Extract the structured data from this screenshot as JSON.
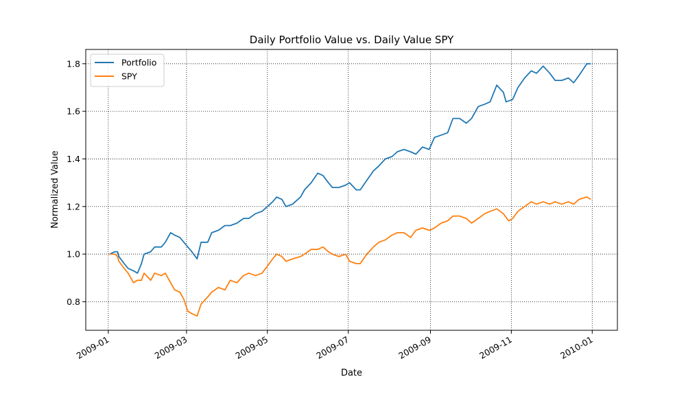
{
  "chart_data": {
    "type": "line",
    "title": "Daily Portfolio Value vs. Daily Value SPY",
    "xlabel": "Date",
    "ylabel": "Normalized Value",
    "xlim": [
      "2008-12-15",
      "2010-01-20"
    ],
    "ylim": [
      0.68,
      1.86
    ],
    "grid": true,
    "grid_style": "dotted",
    "legend_position": "top-left",
    "x_ticks": [
      "2009-01-01",
      "2009-03-01",
      "2009-05-01",
      "2009-07-01",
      "2009-09-01",
      "2009-11-01",
      "2010-01-01"
    ],
    "x_tick_labels": [
      "2009-01",
      "2009-03",
      "2009-05",
      "2009-07",
      "2009-09",
      "2009-11",
      "2010-01"
    ],
    "y_ticks": [
      0.8,
      1.0,
      1.2,
      1.4,
      1.6,
      1.8
    ],
    "y_tick_labels": [
      "0.8",
      "1.0",
      "1.2",
      "1.4",
      "1.6",
      "1.8"
    ],
    "series": [
      {
        "name": "Portfolio",
        "color": "#1f77b4",
        "points": [
          [
            "2009-01-02",
            1.0
          ],
          [
            "2009-01-06",
            1.01
          ],
          [
            "2009-01-08",
            1.01
          ],
          [
            "2009-01-09",
            0.99
          ],
          [
            "2009-01-13",
            0.96
          ],
          [
            "2009-01-16",
            0.94
          ],
          [
            "2009-01-20",
            0.93
          ],
          [
            "2009-01-23",
            0.92
          ],
          [
            "2009-01-26",
            0.96
          ],
          [
            "2009-01-28",
            1.0
          ],
          [
            "2009-02-02",
            1.01
          ],
          [
            "2009-02-05",
            1.03
          ],
          [
            "2009-02-10",
            1.03
          ],
          [
            "2009-02-13",
            1.05
          ],
          [
            "2009-02-17",
            1.09
          ],
          [
            "2009-02-20",
            1.08
          ],
          [
            "2009-02-24",
            1.07
          ],
          [
            "2009-02-27",
            1.05
          ],
          [
            "2009-03-02",
            1.03
          ],
          [
            "2009-03-05",
            1.01
          ],
          [
            "2009-03-09",
            0.98
          ],
          [
            "2009-03-12",
            1.05
          ],
          [
            "2009-03-17",
            1.05
          ],
          [
            "2009-03-20",
            1.09
          ],
          [
            "2009-03-25",
            1.1
          ],
          [
            "2009-03-30",
            1.12
          ],
          [
            "2009-04-03",
            1.12
          ],
          [
            "2009-04-08",
            1.13
          ],
          [
            "2009-04-13",
            1.15
          ],
          [
            "2009-04-17",
            1.15
          ],
          [
            "2009-04-22",
            1.17
          ],
          [
            "2009-04-27",
            1.18
          ],
          [
            "2009-05-01",
            1.2
          ],
          [
            "2009-05-05",
            1.22
          ],
          [
            "2009-05-08",
            1.24
          ],
          [
            "2009-05-12",
            1.23
          ],
          [
            "2009-05-15",
            1.2
          ],
          [
            "2009-05-20",
            1.21
          ],
          [
            "2009-05-26",
            1.24
          ],
          [
            "2009-05-29",
            1.27
          ],
          [
            "2009-06-03",
            1.3
          ],
          [
            "2009-06-08",
            1.34
          ],
          [
            "2009-06-12",
            1.33
          ],
          [
            "2009-06-16",
            1.3
          ],
          [
            "2009-06-19",
            1.28
          ],
          [
            "2009-06-24",
            1.28
          ],
          [
            "2009-06-29",
            1.29
          ],
          [
            "2009-07-02",
            1.3
          ],
          [
            "2009-07-07",
            1.27
          ],
          [
            "2009-07-10",
            1.27
          ],
          [
            "2009-07-15",
            1.31
          ],
          [
            "2009-07-20",
            1.35
          ],
          [
            "2009-07-24",
            1.37
          ],
          [
            "2009-07-29",
            1.4
          ],
          [
            "2009-08-03",
            1.41
          ],
          [
            "2009-08-07",
            1.43
          ],
          [
            "2009-08-12",
            1.44
          ],
          [
            "2009-08-17",
            1.43
          ],
          [
            "2009-08-21",
            1.42
          ],
          [
            "2009-08-26",
            1.45
          ],
          [
            "2009-08-31",
            1.44
          ],
          [
            "2009-09-04",
            1.49
          ],
          [
            "2009-09-09",
            1.5
          ],
          [
            "2009-09-14",
            1.51
          ],
          [
            "2009-09-18",
            1.57
          ],
          [
            "2009-09-23",
            1.57
          ],
          [
            "2009-09-28",
            1.55
          ],
          [
            "2009-10-02",
            1.57
          ],
          [
            "2009-10-07",
            1.62
          ],
          [
            "2009-10-12",
            1.63
          ],
          [
            "2009-10-16",
            1.64
          ],
          [
            "2009-10-21",
            1.71
          ],
          [
            "2009-10-26",
            1.68
          ],
          [
            "2009-10-28",
            1.64
          ],
          [
            "2009-11-02",
            1.65
          ],
          [
            "2009-11-06",
            1.7
          ],
          [
            "2009-11-11",
            1.74
          ],
          [
            "2009-11-16",
            1.77
          ],
          [
            "2009-11-20",
            1.76
          ],
          [
            "2009-11-25",
            1.79
          ],
          [
            "2009-11-30",
            1.76
          ],
          [
            "2009-12-04",
            1.73
          ],
          [
            "2009-12-09",
            1.73
          ],
          [
            "2009-12-14",
            1.74
          ],
          [
            "2009-12-18",
            1.72
          ],
          [
            "2009-12-22",
            1.75
          ],
          [
            "2009-12-28",
            1.8
          ],
          [
            "2009-12-31",
            1.8
          ]
        ]
      },
      {
        "name": "SPY",
        "color": "#ff7f0e",
        "points": [
          [
            "2009-01-02",
            1.0
          ],
          [
            "2009-01-06",
            1.0
          ],
          [
            "2009-01-08",
            0.99
          ],
          [
            "2009-01-09",
            0.97
          ],
          [
            "2009-01-13",
            0.94
          ],
          [
            "2009-01-16",
            0.92
          ],
          [
            "2009-01-20",
            0.88
          ],
          [
            "2009-01-23",
            0.89
          ],
          [
            "2009-01-26",
            0.89
          ],
          [
            "2009-01-28",
            0.92
          ],
          [
            "2009-02-02",
            0.89
          ],
          [
            "2009-02-05",
            0.92
          ],
          [
            "2009-02-10",
            0.91
          ],
          [
            "2009-02-13",
            0.92
          ],
          [
            "2009-02-17",
            0.88
          ],
          [
            "2009-02-20",
            0.85
          ],
          [
            "2009-02-24",
            0.84
          ],
          [
            "2009-02-27",
            0.81
          ],
          [
            "2009-03-02",
            0.76
          ],
          [
            "2009-03-05",
            0.75
          ],
          [
            "2009-03-09",
            0.74
          ],
          [
            "2009-03-12",
            0.79
          ],
          [
            "2009-03-17",
            0.82
          ],
          [
            "2009-03-20",
            0.84
          ],
          [
            "2009-03-25",
            0.86
          ],
          [
            "2009-03-30",
            0.85
          ],
          [
            "2009-04-03",
            0.89
          ],
          [
            "2009-04-08",
            0.88
          ],
          [
            "2009-04-13",
            0.91
          ],
          [
            "2009-04-17",
            0.92
          ],
          [
            "2009-04-22",
            0.91
          ],
          [
            "2009-04-27",
            0.92
          ],
          [
            "2009-05-01",
            0.95
          ],
          [
            "2009-05-05",
            0.98
          ],
          [
            "2009-05-08",
            1.0
          ],
          [
            "2009-05-12",
            0.99
          ],
          [
            "2009-05-15",
            0.97
          ],
          [
            "2009-05-20",
            0.98
          ],
          [
            "2009-05-26",
            0.99
          ],
          [
            "2009-05-29",
            1.0
          ],
          [
            "2009-06-03",
            1.02
          ],
          [
            "2009-06-08",
            1.02
          ],
          [
            "2009-06-12",
            1.03
          ],
          [
            "2009-06-16",
            1.01
          ],
          [
            "2009-06-19",
            1.0
          ],
          [
            "2009-06-24",
            0.99
          ],
          [
            "2009-06-29",
            1.0
          ],
          [
            "2009-07-02",
            0.97
          ],
          [
            "2009-07-07",
            0.96
          ],
          [
            "2009-07-10",
            0.96
          ],
          [
            "2009-07-15",
            1.0
          ],
          [
            "2009-07-20",
            1.03
          ],
          [
            "2009-07-24",
            1.05
          ],
          [
            "2009-07-29",
            1.06
          ],
          [
            "2009-08-03",
            1.08
          ],
          [
            "2009-08-07",
            1.09
          ],
          [
            "2009-08-12",
            1.09
          ],
          [
            "2009-08-17",
            1.07
          ],
          [
            "2009-08-21",
            1.1
          ],
          [
            "2009-08-26",
            1.11
          ],
          [
            "2009-08-31",
            1.1
          ],
          [
            "2009-09-04",
            1.11
          ],
          [
            "2009-09-09",
            1.13
          ],
          [
            "2009-09-14",
            1.14
          ],
          [
            "2009-09-18",
            1.16
          ],
          [
            "2009-09-23",
            1.16
          ],
          [
            "2009-09-28",
            1.15
          ],
          [
            "2009-10-02",
            1.13
          ],
          [
            "2009-10-07",
            1.15
          ],
          [
            "2009-10-12",
            1.17
          ],
          [
            "2009-10-16",
            1.18
          ],
          [
            "2009-10-21",
            1.19
          ],
          [
            "2009-10-26",
            1.17
          ],
          [
            "2009-10-30",
            1.14
          ],
          [
            "2009-11-02",
            1.15
          ],
          [
            "2009-11-06",
            1.18
          ],
          [
            "2009-11-11",
            1.2
          ],
          [
            "2009-11-16",
            1.22
          ],
          [
            "2009-11-20",
            1.21
          ],
          [
            "2009-11-25",
            1.22
          ],
          [
            "2009-11-30",
            1.21
          ],
          [
            "2009-12-04",
            1.22
          ],
          [
            "2009-12-09",
            1.21
          ],
          [
            "2009-12-14",
            1.22
          ],
          [
            "2009-12-18",
            1.21
          ],
          [
            "2009-12-22",
            1.23
          ],
          [
            "2009-12-28",
            1.24
          ],
          [
            "2009-12-31",
            1.23
          ]
        ]
      }
    ]
  }
}
